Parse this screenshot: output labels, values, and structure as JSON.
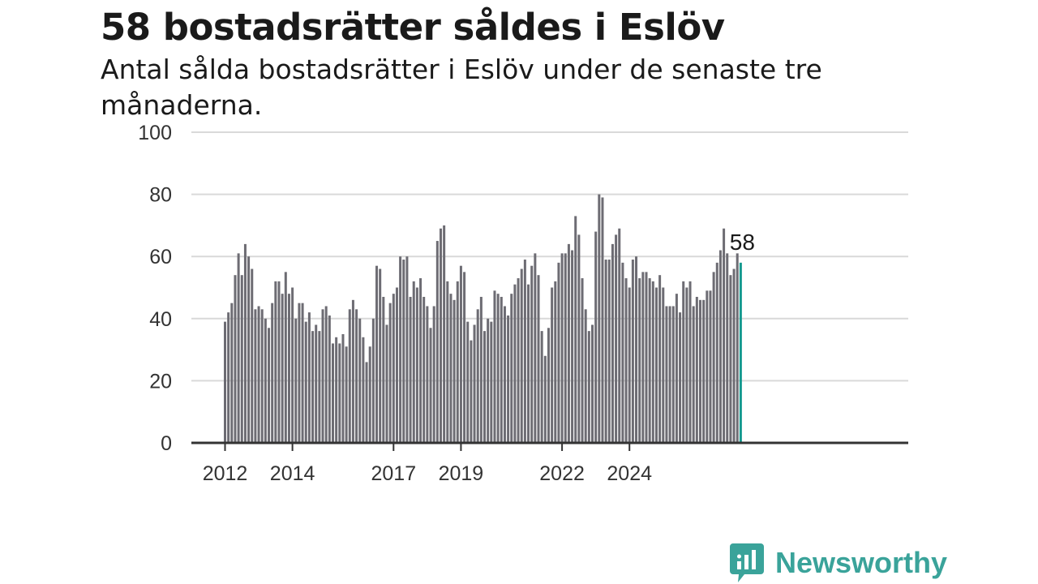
{
  "header": {
    "title": "58 bostadsrätter såldes i Eslöv",
    "subtitle": "Antal sålda bostadsrätter i Eslöv under de senaste tre månaderna."
  },
  "colors": {
    "bar": "#6d6c73",
    "highlight": "#14998f",
    "grid": "#d9d9d9",
    "axis": "#333333",
    "logo": "#3aa39a"
  },
  "chart_data": {
    "type": "bar",
    "ylim": [
      0,
      100
    ],
    "y_ticks": [
      0,
      20,
      40,
      60,
      80,
      100
    ],
    "y_tick_labels": [
      "0",
      "20",
      "40",
      "60",
      "80",
      "100"
    ],
    "x_ticks": [
      {
        "label": "2012",
        "index": 0
      },
      {
        "label": "2014",
        "index": 20
      },
      {
        "label": "2017",
        "index": 50
      },
      {
        "label": "2019",
        "index": 70
      },
      {
        "label": "2022",
        "index": 100
      },
      {
        "label": "2024",
        "index": 120
      }
    ],
    "values": [
      39,
      42,
      45,
      54,
      61,
      54,
      64,
      60,
      56,
      43,
      44,
      43,
      40,
      37,
      45,
      52,
      52,
      48,
      55,
      48,
      50,
      40,
      45,
      45,
      39,
      42,
      36,
      38,
      36,
      43,
      44,
      41,
      32,
      34,
      32,
      35,
      31,
      43,
      46,
      43,
      40,
      34,
      26,
      31,
      40,
      57,
      56,
      47,
      38,
      45,
      48,
      50,
      60,
      59,
      60,
      47,
      52,
      50,
      53,
      47,
      44,
      37,
      44,
      65,
      69,
      70,
      52,
      48,
      46,
      52,
      57,
      55,
      39,
      33,
      38,
      43,
      47,
      36,
      40,
      39,
      49,
      48,
      47,
      44,
      41,
      48,
      51,
      53,
      56,
      59,
      51,
      57,
      61,
      54,
      36,
      28,
      37,
      50,
      52,
      58,
      61,
      61,
      64,
      62,
      73,
      67,
      53,
      43,
      36,
      38,
      68,
      80,
      79,
      59,
      59,
      64,
      67,
      69,
      58,
      53,
      50,
      59,
      60,
      53,
      55,
      55,
      53,
      52,
      50,
      54,
      50,
      44,
      44,
      44,
      48,
      42,
      52,
      50,
      52,
      44,
      47,
      46,
      46,
      49,
      49,
      55,
      58,
      62,
      69,
      61,
      54,
      56,
      61,
      58
    ],
    "highlight_last": true,
    "annotation": {
      "text": "58"
    }
  },
  "logo": {
    "text": "Newsworthy",
    "icon": "bar-chart-speech-bubble-icon"
  }
}
